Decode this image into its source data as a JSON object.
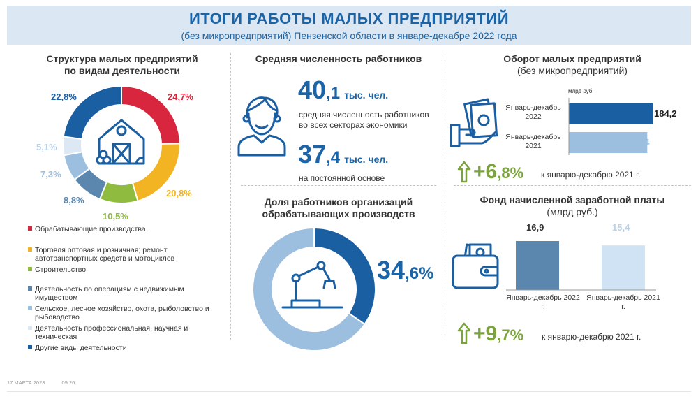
{
  "header": {
    "title": "ИТОГИ РАБОТЫ МАЛЫХ ПРЕДПРИЯТИЙ",
    "subtitle": "(без микропредприятий) Пензенской области в январе-декабре 2022 года"
  },
  "structure": {
    "title_line1": "Структура малых предприятий",
    "title_line2": "по видам деятельности",
    "percent_labels": [
      "24,7%",
      "20,8%",
      "10,5%",
      "8,8%",
      "7,3%",
      "5,1%",
      "22,8%"
    ],
    "legend": [
      {
        "label": "Обрабатывающие производства"
      },
      {
        "label": "Торговля оптовая и розничная; ремонт автотранспортных средств и мотоциклов"
      },
      {
        "label": "Строительство"
      },
      {
        "label": "Деятельность по операциям с недвижимым имуществом"
      },
      {
        "label": "Сельское, лесное хозяйство, охота, рыболовство и рыбоводство"
      },
      {
        "label": "Деятельность профессиональная, научная и техническая"
      },
      {
        "label": "Другие виды деятельности"
      }
    ]
  },
  "workers": {
    "title": "Средняя численность работников",
    "value1_int": "40",
    "value1_frac": ",1",
    "value1_unit": "тыс. чел.",
    "value1_desc_line1": "средняя численность работников",
    "value1_desc_line2": "во всех секторах экономики",
    "value2_int": "37",
    "value2_frac": ",4",
    "value2_unit": "тыс. чел.",
    "value2_desc": "на постоянной основе"
  },
  "manufacturing_share": {
    "title_line1": "Доля работников организаций",
    "title_line2": "обрабатывающих производств",
    "value_int": "34",
    "value_frac": ",6%"
  },
  "turnover": {
    "title_line1": "Оборот малых предприятий",
    "title_line2": "(без микропредприятий)",
    "unit": "млрд руб.",
    "growth_int": "+6",
    "growth_frac": ",8%",
    "growth_note": "к январю-декабрю 2021 г."
  },
  "wages": {
    "title_line1": "Фонд начисленной заработной платы",
    "title_line2": "(млрд руб.)",
    "growth_int": "+9",
    "growth_frac": ",7%",
    "growth_note": "к январю-декабрю 2021 г."
  },
  "footer": {
    "date": "17 МАРТА 2023",
    "time": "09:26"
  },
  "chart_data": [
    {
      "type": "pie",
      "title": "Структура малых предприятий по видам деятельности",
      "categories": [
        "Обрабатывающие производства",
        "Торговля оптовая и розничная; ремонт автотранспортных средств и мотоциклов",
        "Строительство",
        "Деятельность по операциям с недвижимым имуществом",
        "Сельское, лесное хозяйство, охота, рыболовство и рыбоводство",
        "Деятельность профессиональная, научная и техническая",
        "Другие виды деятельности"
      ],
      "values": [
        24.7,
        20.8,
        10.5,
        8.8,
        7.3,
        5.1,
        22.8
      ],
      "colors": [
        "#d7263d",
        "#f2b422",
        "#8fbc3f",
        "#5b86ad",
        "#9cbedf",
        "#dce9f5",
        "#1b5fa3"
      ]
    },
    {
      "type": "bar",
      "orientation": "horizontal",
      "title": "Оборот малых предприятий (без микропредприятий)",
      "unit": "млрд руб.",
      "categories": [
        "Январь-декабрь 2022",
        "Январь-декабрь 2021"
      ],
      "values": [
        184.2,
        172.4
      ],
      "value_labels": [
        "184,2",
        "172,4"
      ],
      "colors": [
        "#1b5fa3",
        "#9cbedf"
      ]
    },
    {
      "type": "pie",
      "title": "Доля работников организаций обрабатывающих производств",
      "categories": [
        "Обрабатывающие производства",
        "Прочие"
      ],
      "values": [
        34.6,
        65.4
      ],
      "colors": [
        "#1b5fa3",
        "#9cbedf"
      ]
    },
    {
      "type": "bar",
      "title": "Фонд начисленной заработной платы",
      "unit": "млрд руб.",
      "categories": [
        "Январь-декабрь 2022 г.",
        "Январь-декабрь 2021 г."
      ],
      "values": [
        16.9,
        15.4
      ],
      "value_labels": [
        "16,9",
        "15,4"
      ],
      "colors": [
        "#5b86ad",
        "#cfe3f5"
      ]
    }
  ]
}
